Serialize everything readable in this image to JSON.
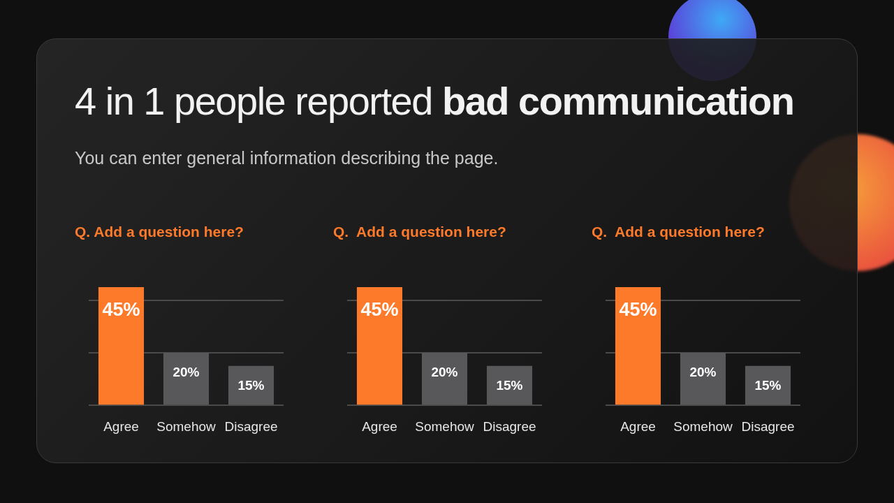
{
  "chart_data": [
    {
      "type": "other",
      "title": "4 in 1 people reported bad communication",
      "subtitle": "You can enter general information describing the page."
    },
    {
      "type": "bar",
      "title": "Q. Add a question here?",
      "categories": [
        "Agree",
        "Somehow",
        "Disagree"
      ],
      "values": [
        45,
        20,
        15
      ],
      "colors": [
        "#fd7a2a",
        "#58585b",
        "#58585b"
      ],
      "value_labels": [
        "45%",
        "20%",
        "15%"
      ],
      "ylim": [
        0,
        45
      ],
      "yticks": [
        {
          "value": 0,
          "label": null
        },
        {
          "value": 20,
          "label": null
        },
        {
          "value": 40,
          "label": null
        }
      ],
      "grid": "y",
      "tick_labels": "x"
    },
    {
      "type": "bar",
      "title": "Q.  Add a question here?",
      "categories": [
        "Agree",
        "Somehow",
        "Disagree"
      ],
      "values": [
        45,
        20,
        15
      ],
      "colors": [
        "#fd7a2a",
        "#58585b",
        "#58585b"
      ],
      "value_labels": [
        "45%",
        "20%",
        "15%"
      ],
      "ylim": [
        0,
        45
      ],
      "yticks": [
        {
          "value": 0,
          "label": null
        },
        {
          "value": 20,
          "label": null
        },
        {
          "value": 40,
          "label": null
        }
      ],
      "grid": "y",
      "tick_labels": "x"
    },
    {
      "type": "bar",
      "title": "Q.  Add a question here?",
      "categories": [
        "Agree",
        "Somehow",
        "Disagree"
      ],
      "values": [
        45,
        20,
        15
      ],
      "colors": [
        "#fd7a2a",
        "#58585b",
        "#58585b"
      ],
      "value_labels": [
        "45%",
        "20%",
        "15%"
      ],
      "ylim": [
        0,
        45
      ],
      "yticks": [
        {
          "value": 0,
          "label": null
        },
        {
          "value": 20,
          "label": null
        },
        {
          "value": 40,
          "label": null
        }
      ],
      "grid": "y",
      "tick_labels": "x"
    }
  ]
}
